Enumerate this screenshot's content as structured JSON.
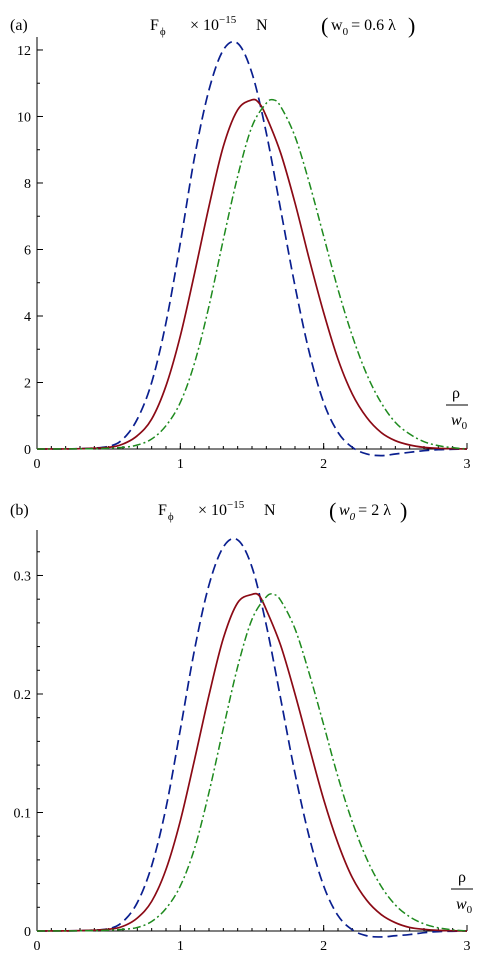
{
  "chart_data": [
    {
      "type": "line",
      "panel_label": "(a)",
      "title_quantity": "F",
      "title_subscript": "ϕ",
      "title_multiplier": "× 10",
      "title_exponent": "−15",
      "title_unit": "N",
      "title_param_name": "w",
      "title_param_sub": "0",
      "title_param_value": "= 0.6 λ",
      "xlabel_num": "ρ",
      "xlabel_den_main": "w",
      "xlabel_den_sub": "0",
      "xlim": [
        0,
        3
      ],
      "ylim": [
        0,
        12.3
      ],
      "x_ticks": [
        0,
        1,
        2,
        3
      ],
      "x_tick_labels": [
        "0",
        "1",
        "2",
        "3"
      ],
      "y_ticks": [
        0,
        2,
        4,
        6,
        8,
        10,
        12
      ],
      "y_tick_labels": [
        "0",
        "2",
        "4",
        "6",
        "8",
        "10",
        "12"
      ],
      "y_minor_step": 1,
      "series": [
        {
          "color": "#0a1f8f",
          "style": "dashed",
          "x": [
            0,
            0.3,
            0.5,
            0.6,
            0.7,
            0.8,
            0.9,
            1.0,
            1.1,
            1.2,
            1.3,
            1.4,
            1.5,
            1.6,
            1.7,
            1.8,
            1.9,
            2.0,
            2.1,
            2.2,
            2.3,
            2.4,
            2.5,
            2.6,
            2.7,
            2.8,
            2.9,
            3.0
          ],
          "y": [
            0,
            0.01,
            0.08,
            0.3,
            0.9,
            2.0,
            3.8,
            6.2,
            8.8,
            10.8,
            12.0,
            12.2,
            11.3,
            9.5,
            7.2,
            4.9,
            2.9,
            1.4,
            0.5,
            0.05,
            -0.15,
            -0.2,
            -0.15,
            -0.1,
            -0.05,
            -0.02,
            -0.01,
            0
          ]
        },
        {
          "color": "#8b0a15",
          "style": "solid",
          "x": [
            0,
            0.3,
            0.5,
            0.6,
            0.7,
            0.8,
            0.9,
            1.0,
            1.1,
            1.2,
            1.3,
            1.4,
            1.5,
            1.55,
            1.6,
            1.7,
            1.8,
            1.9,
            2.0,
            2.1,
            2.2,
            2.3,
            2.4,
            2.5,
            2.6,
            2.7,
            2.8,
            2.9,
            3.0
          ],
          "y": [
            0,
            0.01,
            0.05,
            0.15,
            0.4,
            0.9,
            1.9,
            3.4,
            5.3,
            7.3,
            9.1,
            10.2,
            10.5,
            10.4,
            10.0,
            8.9,
            7.4,
            5.7,
            4.1,
            2.7,
            1.65,
            0.95,
            0.5,
            0.25,
            0.12,
            0.05,
            0.02,
            0.01,
            0
          ]
        },
        {
          "color": "#1e8a1e",
          "style": "dashdot",
          "x": [
            0,
            0.4,
            0.6,
            0.7,
            0.8,
            0.9,
            1.0,
            1.1,
            1.2,
            1.3,
            1.4,
            1.5,
            1.6,
            1.65,
            1.7,
            1.8,
            1.9,
            2.0,
            2.1,
            2.2,
            2.3,
            2.4,
            2.5,
            2.6,
            2.7,
            2.8,
            2.9,
            3.0
          ],
          "y": [
            0,
            0.01,
            0.05,
            0.12,
            0.3,
            0.7,
            1.4,
            2.6,
            4.3,
            6.3,
            8.2,
            9.7,
            10.4,
            10.5,
            10.3,
            9.4,
            8.0,
            6.4,
            4.8,
            3.4,
            2.25,
            1.4,
            0.8,
            0.45,
            0.22,
            0.1,
            0.04,
            0
          ]
        }
      ]
    },
    {
      "type": "line",
      "panel_label": "(b)",
      "title_quantity": "F",
      "title_subscript": "ϕ",
      "title_multiplier": "× 10",
      "title_exponent": "−15",
      "title_unit": "N",
      "title_param_name": "w",
      "title_param_sub": "0",
      "title_param_value": "= 2 λ",
      "xlabel_num": "ρ",
      "xlabel_den_main": "w",
      "xlabel_den_sub": "0",
      "xlim": [
        0,
        3
      ],
      "ylim": [
        0,
        0.335
      ],
      "x_ticks": [
        0,
        1,
        2,
        3
      ],
      "x_tick_labels": [
        "0",
        "1",
        "2",
        "3"
      ],
      "y_ticks": [
        0,
        0.1,
        0.2,
        0.3
      ],
      "y_tick_labels": [
        "0",
        "0.1",
        "0.2",
        "0.3"
      ],
      "y_minor_step": 0.02,
      "series": [
        {
          "color": "#0a1f8f",
          "style": "dashed",
          "x": [
            0,
            0.3,
            0.5,
            0.6,
            0.7,
            0.8,
            0.9,
            1.0,
            1.1,
            1.2,
            1.3,
            1.4,
            1.5,
            1.6,
            1.7,
            1.8,
            1.9,
            2.0,
            2.1,
            2.2,
            2.3,
            2.4,
            2.5,
            2.6,
            2.7,
            2.8,
            2.9,
            3.0
          ],
          "y": [
            0,
            0.0003,
            0.002,
            0.008,
            0.024,
            0.055,
            0.104,
            0.17,
            0.238,
            0.292,
            0.324,
            0.33,
            0.307,
            0.258,
            0.196,
            0.133,
            0.079,
            0.038,
            0.013,
            0.001,
            -0.004,
            -0.005,
            -0.004,
            -0.003,
            -0.0014,
            -0.0005,
            -0.0002,
            0
          ]
        },
        {
          "color": "#8b0a15",
          "style": "solid",
          "x": [
            0,
            0.3,
            0.5,
            0.6,
            0.7,
            0.8,
            0.9,
            1.0,
            1.1,
            1.2,
            1.3,
            1.4,
            1.5,
            1.55,
            1.6,
            1.7,
            1.8,
            1.9,
            2.0,
            2.1,
            2.2,
            2.3,
            2.4,
            2.5,
            2.6,
            2.7,
            2.8,
            2.9,
            3.0
          ],
          "y": [
            0,
            0.0003,
            0.0015,
            0.004,
            0.011,
            0.025,
            0.052,
            0.093,
            0.145,
            0.199,
            0.247,
            0.277,
            0.284,
            0.283,
            0.271,
            0.241,
            0.2,
            0.155,
            0.111,
            0.074,
            0.045,
            0.026,
            0.014,
            0.007,
            0.003,
            0.0014,
            0.0005,
            0.0002,
            0
          ]
        },
        {
          "color": "#1e8a1e",
          "style": "dashdot",
          "x": [
            0,
            0.4,
            0.6,
            0.7,
            0.8,
            0.9,
            1.0,
            1.1,
            1.2,
            1.3,
            1.4,
            1.5,
            1.6,
            1.65,
            1.7,
            1.8,
            1.9,
            2.0,
            2.1,
            2.2,
            2.3,
            2.4,
            2.5,
            2.6,
            2.7,
            2.8,
            2.9,
            3.0
          ],
          "y": [
            0,
            0.0003,
            0.0014,
            0.003,
            0.008,
            0.019,
            0.038,
            0.07,
            0.117,
            0.171,
            0.223,
            0.263,
            0.282,
            0.284,
            0.279,
            0.255,
            0.217,
            0.174,
            0.13,
            0.092,
            0.061,
            0.038,
            0.022,
            0.012,
            0.006,
            0.0027,
            0.001,
            0
          ]
        }
      ]
    }
  ]
}
